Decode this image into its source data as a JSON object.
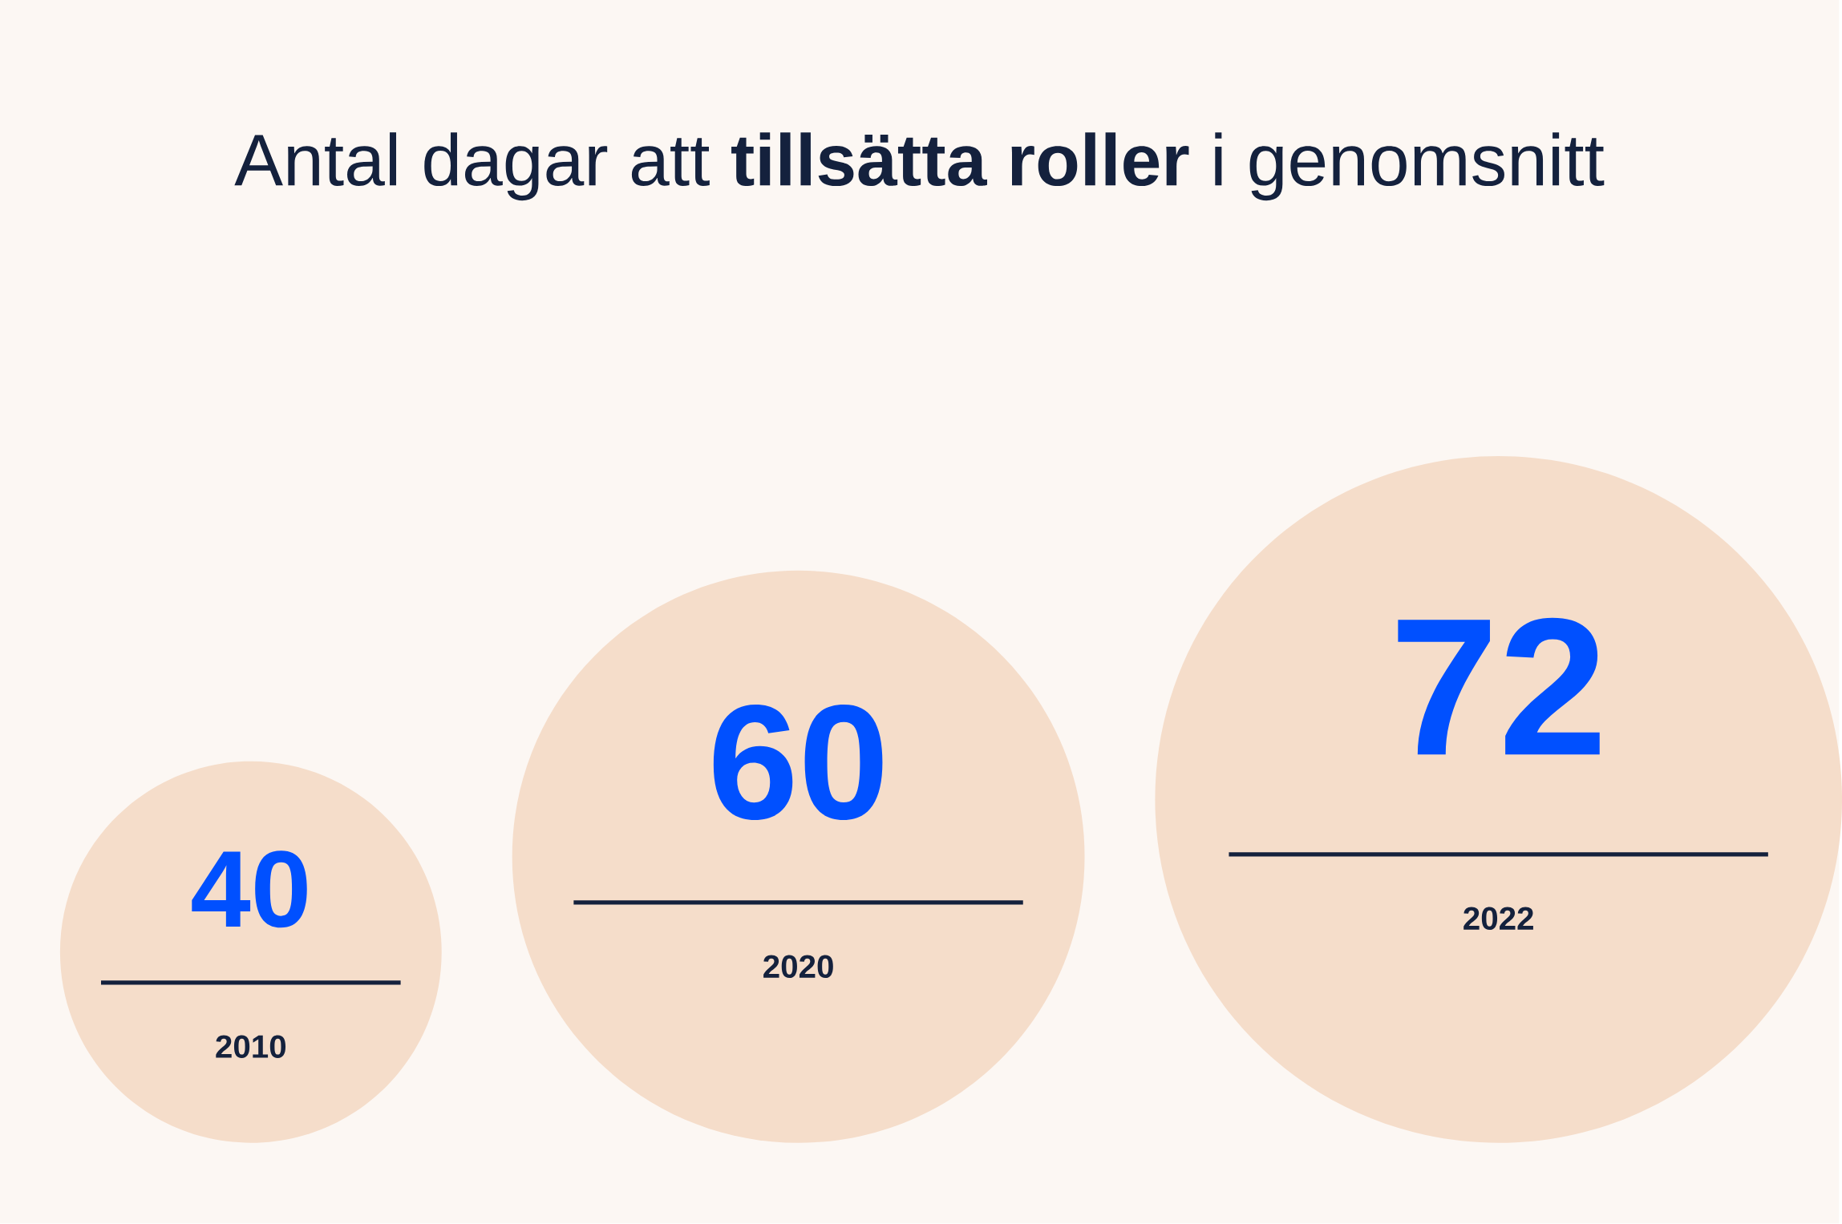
{
  "chart_data": {
    "type": "other",
    "title": "Antal dagar att **tillsätta roller** i genomsnitt",
    "categories": [
      "2010",
      "2020",
      "2022"
    ],
    "values": [
      40,
      60,
      72
    ],
    "color": "#f5ddca",
    "data_labels": true
  }
}
